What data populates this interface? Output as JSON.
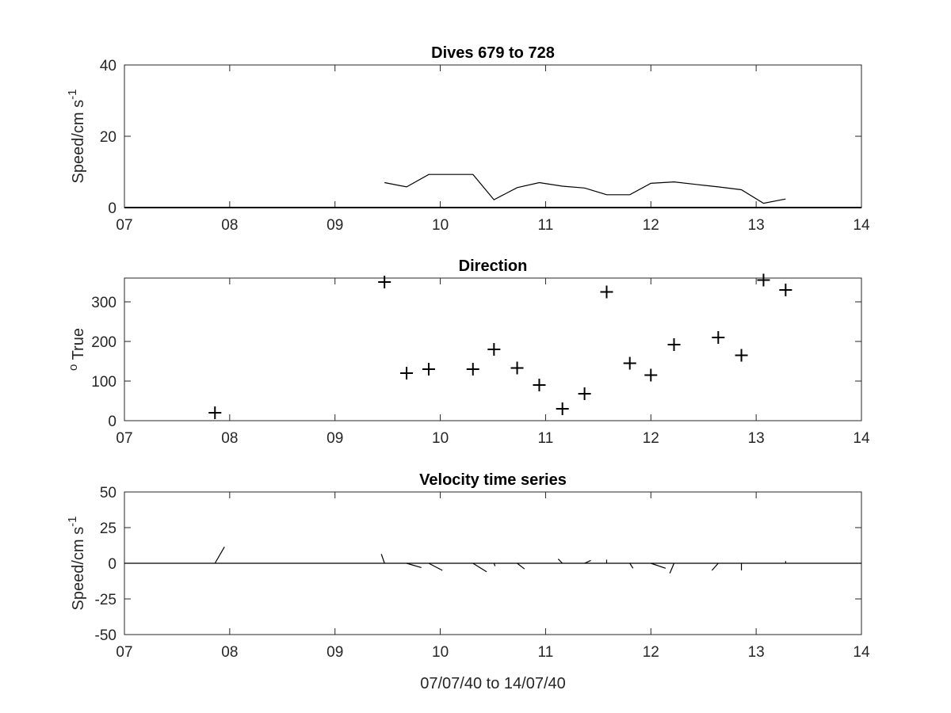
{
  "chart_data": [
    {
      "type": "line",
      "title": "Dives 679 to 728",
      "ylabel": "Speed/cm s",
      "ylabel_superscript": "-1",
      "xlabel": "",
      "xlim": [
        7,
        14
      ],
      "ylim": [
        0,
        40
      ],
      "xticks": [
        7,
        8,
        9,
        10,
        11,
        12,
        13,
        14
      ],
      "xticklabels": [
        "07",
        "08",
        "09",
        "10",
        "11",
        "12",
        "13",
        "14"
      ],
      "yticks": [
        0,
        20,
        40
      ],
      "yticklabels": [
        "0",
        "20",
        "40"
      ],
      "grid": false,
      "series": [
        {
          "x": [
            9.47,
            9.68,
            9.89,
            10.1,
            10.31,
            10.51,
            10.73,
            10.94,
            11.16,
            11.37,
            11.58,
            11.8,
            12.0,
            12.22,
            12.43,
            12.64,
            12.86,
            13.07,
            13.28
          ],
          "y": [
            7,
            5.8,
            9.3,
            9.3,
            9.3,
            2.2,
            5.6,
            7,
            6,
            5.5,
            3.6,
            3.6,
            6.8,
            7.2,
            6.5,
            5.8,
            5,
            1.2,
            2.4
          ]
        }
      ]
    },
    {
      "type": "scatter",
      "title": "Direction",
      "ylabel": "True",
      "ylabel_prefix": "o",
      "xlabel": "",
      "xlim": [
        7,
        14
      ],
      "ylim": [
        0,
        360
      ],
      "xticks": [
        7,
        8,
        9,
        10,
        11,
        12,
        13,
        14
      ],
      "xticklabels": [
        "07",
        "08",
        "09",
        "10",
        "11",
        "12",
        "13",
        "14"
      ],
      "yticks": [
        0,
        100,
        200,
        300
      ],
      "yticklabels": [
        "0",
        "100",
        "200",
        "300"
      ],
      "marker": "+",
      "grid": false,
      "series": [
        {
          "x": [
            7.86,
            9.47,
            9.68,
            9.89,
            10.31,
            10.51,
            10.73,
            10.94,
            11.16,
            11.37,
            11.58,
            11.8,
            12.0,
            12.22,
            12.64,
            12.86,
            13.07,
            13.28
          ],
          "y": [
            20,
            350,
            120,
            130,
            130,
            180,
            133,
            90,
            30,
            68,
            325,
            145,
            115,
            192,
            210,
            165,
            355,
            330
          ]
        }
      ]
    },
    {
      "type": "line",
      "title": "Velocity time series",
      "ylabel": "Speed/cm s",
      "ylabel_superscript": "-1",
      "xlabel": "07/07/40 to 14/07/40",
      "xlim": [
        7,
        14
      ],
      "ylim": [
        -50,
        50
      ],
      "xticks": [
        7,
        8,
        9,
        10,
        11,
        12,
        13,
        14
      ],
      "xticklabels": [
        "07",
        "08",
        "09",
        "10",
        "11",
        "12",
        "13",
        "14"
      ],
      "yticks": [
        -50,
        -25,
        0,
        25,
        50
      ],
      "yticklabels": [
        "-50",
        "-25",
        "0",
        "25",
        "50"
      ],
      "grid": false,
      "vectors": [
        {
          "x": 7.86,
          "u": 0.09,
          "v": 11.5
        },
        {
          "x": 9.47,
          "u": -0.03,
          "v": 6.5
        },
        {
          "x": 9.68,
          "u": 0.14,
          "v": -3.0
        },
        {
          "x": 9.89,
          "u": 0.13,
          "v": -5.0
        },
        {
          "x": 10.31,
          "u": 0.13,
          "v": -6.0
        },
        {
          "x": 10.51,
          "u": 0.01,
          "v": -2.0
        },
        {
          "x": 10.73,
          "u": 0.07,
          "v": -4.0
        },
        {
          "x": 11.16,
          "u": -0.04,
          "v": 3.0
        },
        {
          "x": 11.37,
          "u": 0.06,
          "v": 2.0
        },
        {
          "x": 11.58,
          "u": 0.0,
          "v": 2.5
        },
        {
          "x": 11.8,
          "u": 0.03,
          "v": -3.5
        },
        {
          "x": 12.0,
          "u": 0.14,
          "v": -3.5
        },
        {
          "x": 12.22,
          "u": -0.04,
          "v": -7.0
        },
        {
          "x": 12.64,
          "u": -0.06,
          "v": -5.0
        },
        {
          "x": 12.86,
          "u": 0.0,
          "v": -5.0
        },
        {
          "x": 13.28,
          "u": 0.0,
          "v": 1.5
        }
      ]
    }
  ]
}
